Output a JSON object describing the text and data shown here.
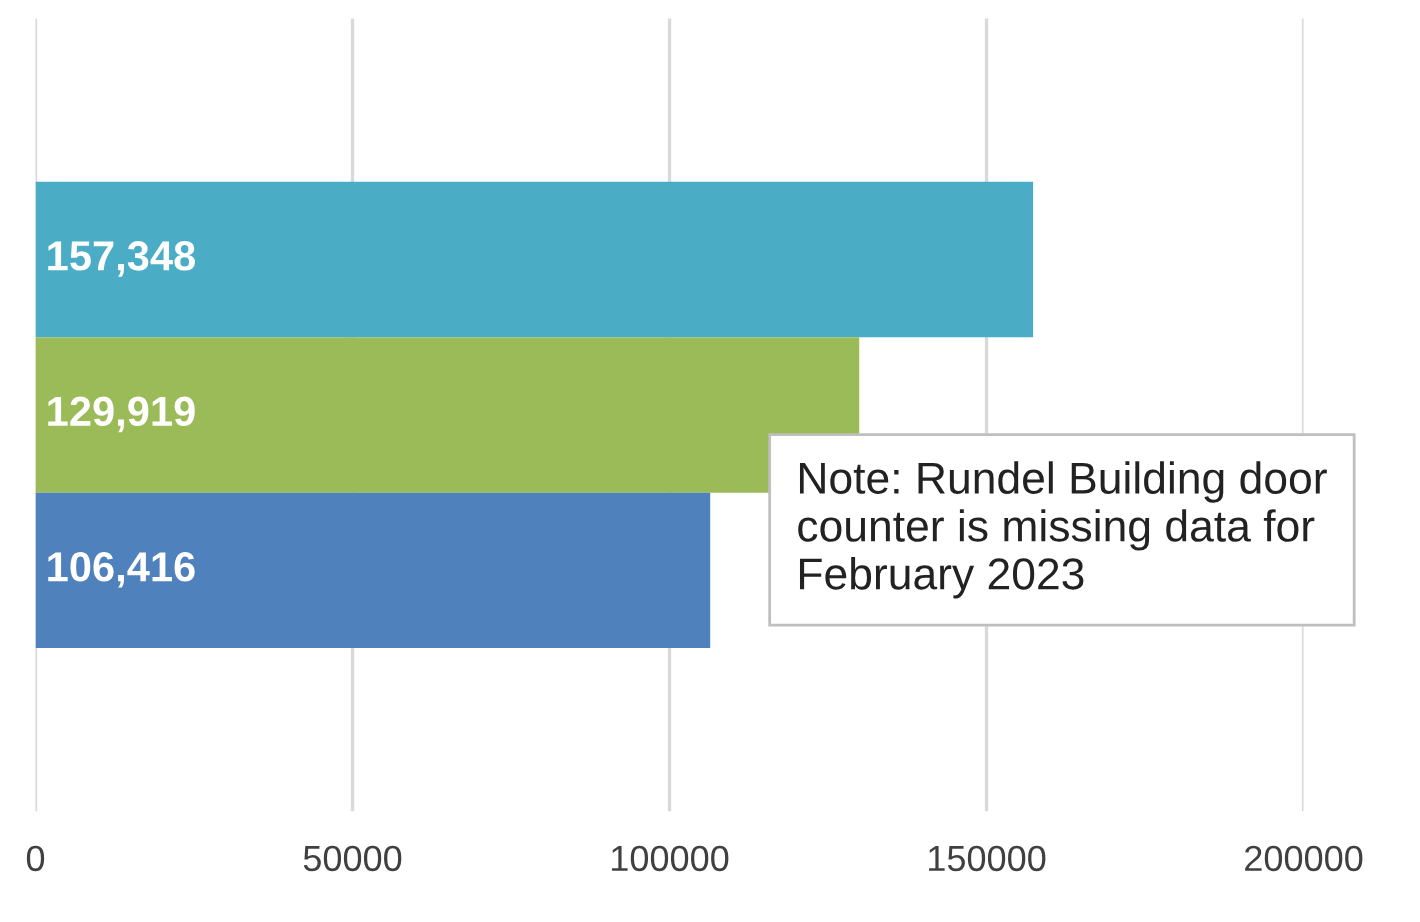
{
  "chart_data": {
    "type": "bar",
    "orientation": "horizontal",
    "categories": [
      null,
      null,
      null
    ],
    "values": [
      157348,
      129919,
      106416
    ],
    "colors": [
      "#4bacc6",
      "#9bbb59",
      "#4f81bd"
    ],
    "value_labels": [
      "157,348",
      "129,919",
      "106,416"
    ],
    "xlim": [
      0,
      200000
    ],
    "xticks": [
      0,
      50000,
      100000,
      150000,
      200000
    ],
    "grid": "x",
    "tick_labels": "x",
    "annotations": [
      "Note: Rundel Building door counter is missing data for February 2023"
    ]
  }
}
